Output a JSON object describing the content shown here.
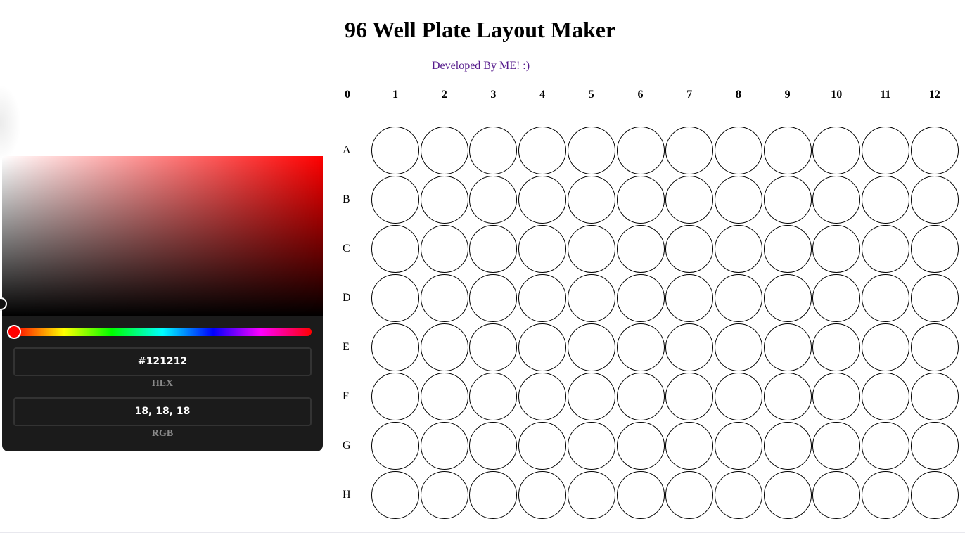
{
  "title": "96 Well Plate Layout Maker",
  "developer_link": "Developed By ME! :)",
  "color_picker": {
    "hex_value": "#121212",
    "hex_label": "HEX",
    "rgb_value": "18, 18, 18",
    "rgb_label": "RGB",
    "hue_color": "#ff0000",
    "selected_color": "#121212"
  },
  "plate": {
    "corner_label": "0",
    "columns": [
      "1",
      "2",
      "3",
      "4",
      "5",
      "6",
      "7",
      "8",
      "9",
      "10",
      "11",
      "12"
    ],
    "rows": [
      "A",
      "B",
      "C",
      "D",
      "E",
      "F",
      "G",
      "H"
    ],
    "well_fill": "#ffffff",
    "well_border": "#000000"
  }
}
